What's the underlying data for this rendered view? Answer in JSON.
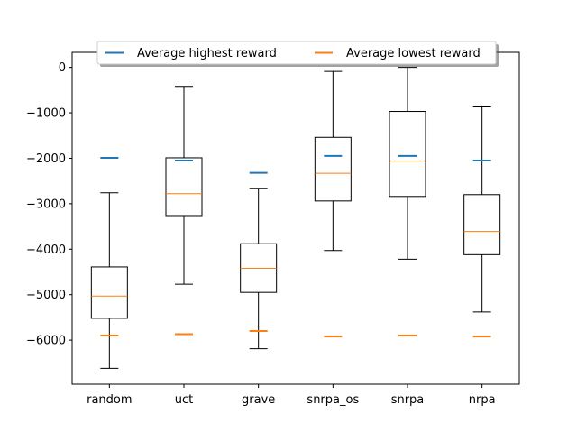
{
  "chart_data": {
    "type": "box",
    "title": "",
    "xlabel": "",
    "ylabel": "",
    "categories": [
      "random",
      "uct",
      "grave",
      "snrpa_os",
      "snrpa",
      "nrpa"
    ],
    "boxes": [
      {
        "whisker_low": -6620,
        "q1": -5520,
        "median": -5030,
        "q3": -4390,
        "whisker_high": -2760
      },
      {
        "whisker_low": -4770,
        "q1": -3260,
        "median": -2780,
        "q3": -1990,
        "whisker_high": -420
      },
      {
        "whisker_low": -6190,
        "q1": -4950,
        "median": -4420,
        "q3": -3880,
        "whisker_high": -2660
      },
      {
        "whisker_low": -4030,
        "q1": -2940,
        "median": -2330,
        "q3": -1540,
        "whisker_high": -90
      },
      {
        "whisker_low": -4220,
        "q1": -2840,
        "median": -2060,
        "q3": -970,
        "whisker_high": 0
      },
      {
        "whisker_low": -5380,
        "q1": -4120,
        "median": -3610,
        "q3": -2800,
        "whisker_high": -870
      }
    ],
    "series": [
      {
        "name": "Average highest reward",
        "color": "#1f77b4",
        "values": [
          -1990,
          -2050,
          -2320,
          -1950,
          -1950,
          -2050
        ]
      },
      {
        "name": "Average lowest reward",
        "color": "#ff7f0e",
        "values": [
          -5900,
          -5870,
          -5800,
          -5920,
          -5900,
          -5920
        ]
      }
    ],
    "median_color": "#ff7f0e",
    "ylim": [
      -6970,
      330
    ],
    "yticks": [
      0,
      -1000,
      -2000,
      -3000,
      -4000,
      -5000,
      -6000
    ],
    "ytick_labels": [
      "0",
      "−1000",
      "−2000",
      "−3000",
      "−4000",
      "−5000",
      "−6000"
    ],
    "legend": {
      "placement": "top-center",
      "columns": 2,
      "shadow": true
    },
    "grid": false
  }
}
